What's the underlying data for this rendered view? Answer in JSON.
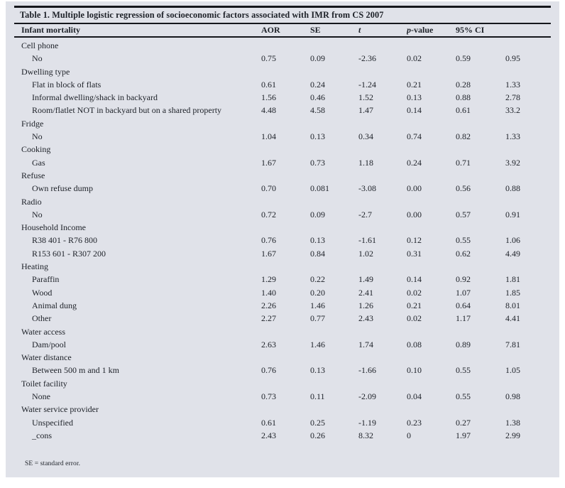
{
  "page": {
    "background": "#ffffff",
    "panel_background": "#e0e2e9",
    "text_color": "#1d2128",
    "rule_color": "#15171c"
  },
  "table": {
    "title": "Table 1. Multiple logistic regression of socioeconomic factors associated with IMR from CS 2007",
    "header": {
      "label_column": "Infant mortality",
      "value_columns": [
        {
          "label": "AOR",
          "style": "bold"
        },
        {
          "label": "SE",
          "style": "bold"
        },
        {
          "label": "t",
          "style": "bold-italic"
        },
        {
          "label": "p-value",
          "style": "bold-italic-first-letter"
        },
        {
          "label": "95% CI",
          "style": "bold"
        },
        {
          "label": "",
          "style": "bold"
        }
      ]
    },
    "groups": [
      {
        "category": "Cell phone",
        "rows": [
          {
            "label": "No",
            "values": [
              "0.75",
              "0.09",
              "-2.36",
              "0.02",
              "0.59",
              "0.95"
            ]
          }
        ]
      },
      {
        "category": "Dwelling type",
        "rows": [
          {
            "label": "Flat in block of flats",
            "values": [
              "0.61",
              "0.24",
              "-1.24",
              "0.21",
              "0.28",
              "1.33"
            ]
          },
          {
            "label": "Informal dwelling/shack in backyard",
            "values": [
              "1.56",
              "0.46",
              "1.52",
              "0.13",
              "0.88",
              "2.78"
            ]
          },
          {
            "label": "Room/flatlet NOT in backyard but on a shared property",
            "values": [
              "4.48",
              "4.58",
              "1.47",
              "0.14",
              "0.61",
              "33.2"
            ]
          }
        ]
      },
      {
        "category": "Fridge",
        "rows": [
          {
            "label": "No",
            "values": [
              "1.04",
              "0.13",
              "0.34",
              "0.74",
              "0.82",
              "1.33"
            ]
          }
        ]
      },
      {
        "category": "Cooking",
        "rows": [
          {
            "label": "Gas",
            "values": [
              "1.67",
              "0.73",
              "1.18",
              "0.24",
              "0.71",
              "3.92"
            ]
          }
        ]
      },
      {
        "category": "Refuse",
        "rows": [
          {
            "label": "Own refuse dump",
            "values": [
              "0.70",
              "0.081",
              "-3.08",
              "0.00",
              "0.56",
              "0.88"
            ]
          }
        ]
      },
      {
        "category": "Radio",
        "rows": [
          {
            "label": "No",
            "values": [
              "0.72",
              "0.09",
              "-2.7",
              "0.00",
              "0.57",
              "0.91"
            ]
          }
        ]
      },
      {
        "category": "Household Income",
        "rows": [
          {
            "label": "R38 401 - R76 800",
            "values": [
              "0.76",
              "0.13",
              "-1.61",
              "0.12",
              "0.55",
              "1.06"
            ]
          },
          {
            "label": "R153 601 - R307 200",
            "values": [
              "1.67",
              "0.84",
              "1.02",
              "0.31",
              "0.62",
              "4.49"
            ]
          }
        ]
      },
      {
        "category": "Heating",
        "rows": [
          {
            "label": "Paraffin",
            "values": [
              "1.29",
              "0.22",
              "1.49",
              "0.14",
              "0.92",
              "1.81"
            ]
          },
          {
            "label": "Wood",
            "values": [
              "1.40",
              "0.20",
              "2.41",
              "0.02",
              "1.07",
              "1.85"
            ]
          },
          {
            "label": "Animal dung",
            "values": [
              "2.26",
              "1.46",
              "1.26",
              "0.21",
              "0.64",
              "8.01"
            ]
          },
          {
            "label": "Other",
            "values": [
              "2.27",
              "0.77",
              "2.43",
              "0.02",
              "1.17",
              "4.41"
            ]
          }
        ]
      },
      {
        "category": "Water access",
        "rows": [
          {
            "label": "Dam/pool",
            "values": [
              "2.63",
              "1.46",
              "1.74",
              "0.08",
              "0.89",
              "7.81"
            ]
          }
        ]
      },
      {
        "category": "Water distance",
        "rows": [
          {
            "label": "Between 500 m and 1 km",
            "values": [
              "0.76",
              "0.13",
              "-1.66",
              "0.10",
              "0.55",
              "1.05"
            ]
          }
        ]
      },
      {
        "category": "Toilet facility",
        "rows": [
          {
            "label": "None",
            "values": [
              "0.73",
              "0.11",
              "-2.09",
              "0.04",
              "0.55",
              "0.98"
            ]
          }
        ]
      },
      {
        "category": "Water service provider",
        "rows": [
          {
            "label": "Unspecified",
            "values": [
              "0.61",
              "0.25",
              "-1.19",
              "0.23",
              "0.27",
              "1.38"
            ]
          },
          {
            "label": "_cons",
            "values": [
              "2.43",
              "0.26",
              "8.32",
              "0",
              "1.97",
              "2.99"
            ]
          }
        ]
      }
    ],
    "footnote": "SE = standard error."
  }
}
